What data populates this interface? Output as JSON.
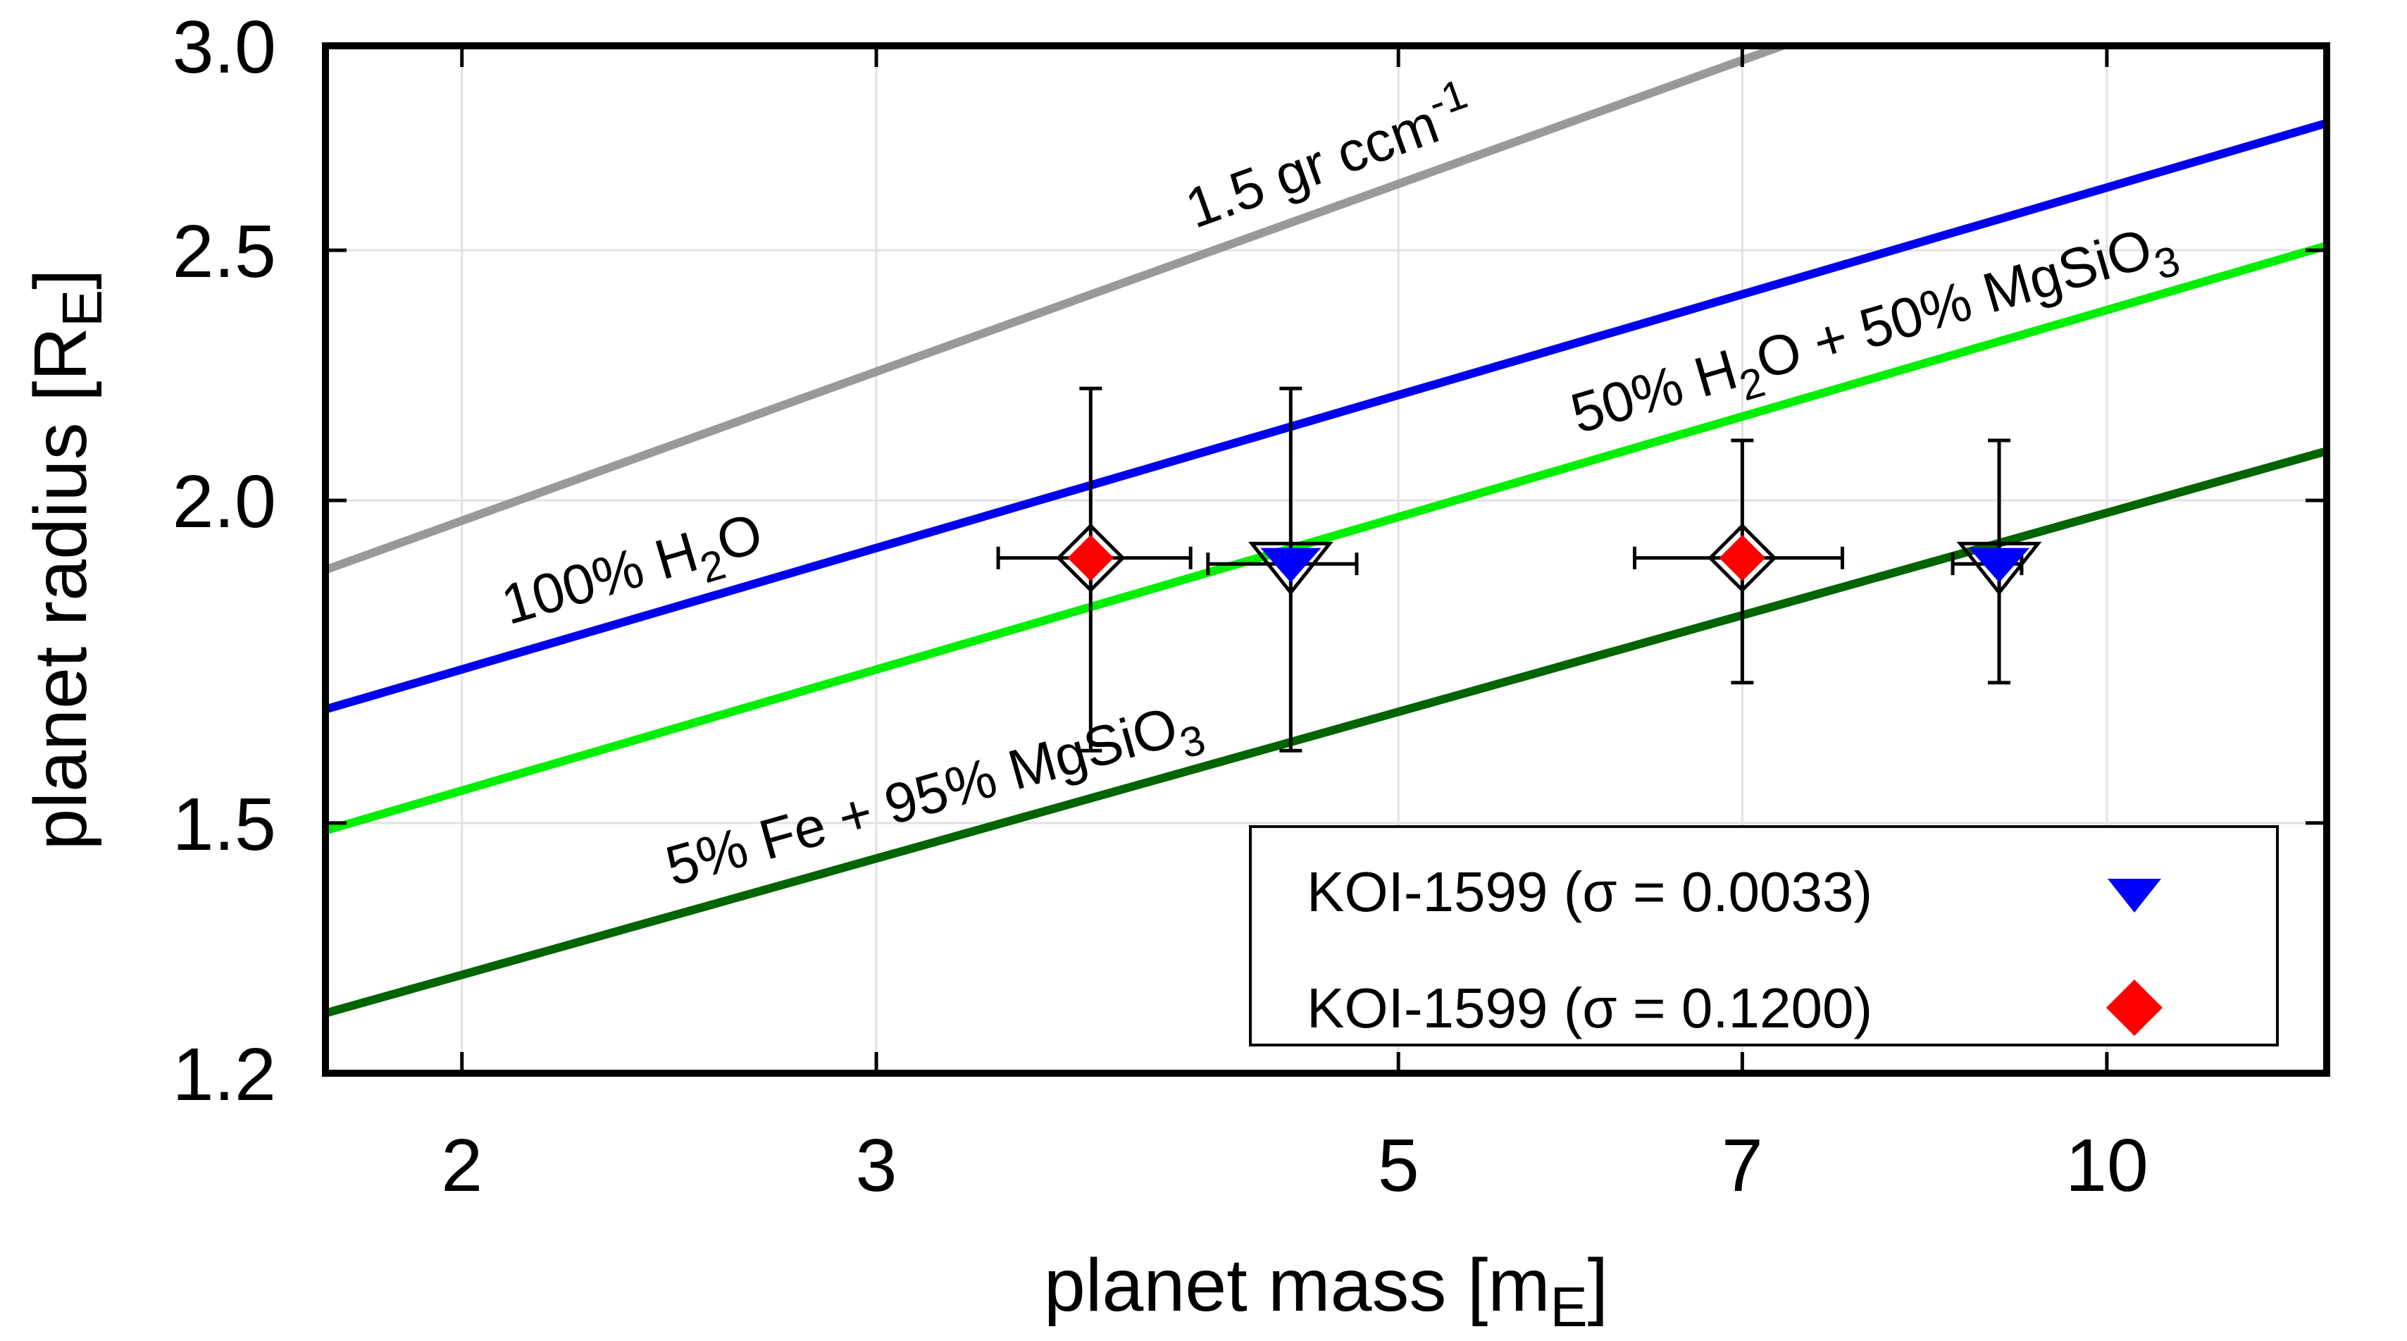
{
  "chart_data": {
    "type": "scatter",
    "x_scale": "log",
    "y_scale": "log",
    "xlabel": {
      "main": "planet mass [m",
      "sub": "E",
      "close": "]"
    },
    "ylabel": {
      "main": "planet radius [R",
      "sub": "E",
      "close": "]"
    },
    "xlim": [
      1.75,
      12.4
    ],
    "ylim": [
      1.2,
      3.0
    ],
    "x_ticks": [
      {
        "value": 2,
        "label": "2"
      },
      {
        "value": 3,
        "label": "3"
      },
      {
        "value": 5,
        "label": "5"
      },
      {
        "value": 7,
        "label": "7"
      },
      {
        "value": 10,
        "label": "10"
      }
    ],
    "y_ticks": [
      {
        "value": 1.2,
        "label": "1.2"
      },
      {
        "value": 1.5,
        "label": "1.5"
      },
      {
        "value": 2.0,
        "label": "2.0"
      },
      {
        "value": 2.5,
        "label": "2.5"
      },
      {
        "value": 3.0,
        "label": "3.0"
      }
    ],
    "grid": true,
    "curves": [
      {
        "name": "1.5 gr ccm-1",
        "color": "#999999",
        "x": [
          1.75,
          7.28
        ],
        "y": [
          1.88,
          3.0
        ]
      },
      {
        "name": "100% H2O",
        "color": "#0000ee",
        "x": [
          1.75,
          12.4
        ],
        "y": [
          1.66,
          2.8
        ]
      },
      {
        "name": "50% H2O + 50% MgSiO3",
        "color": "#00ee00",
        "x": [
          1.75,
          12.4
        ],
        "y": [
          1.49,
          2.51
        ]
      },
      {
        "name": "5% Fe + 95% MgSiO3",
        "color": "#006400",
        "x": [
          1.75,
          12.4
        ],
        "y": [
          1.266,
          2.09
        ]
      }
    ],
    "curve_labels": [
      {
        "curve": "1.5 gr ccm-1",
        "parts": [
          {
            "t": "1.5 gr ccm"
          },
          {
            "t": "-1",
            "sup": true
          }
        ]
      },
      {
        "curve": "100% H2O",
        "parts": [
          {
            "t": "100% H"
          },
          {
            "t": "2",
            "sub": true
          },
          {
            "t": "O"
          }
        ]
      },
      {
        "curve": "50% H2O + 50% MgSiO3",
        "parts": [
          {
            "t": "50% H"
          },
          {
            "t": "2",
            "sub": true
          },
          {
            "t": "O + 50% MgSiO"
          },
          {
            "t": "3",
            "sub": true
          }
        ]
      },
      {
        "curve": "5% Fe + 95% MgSiO3",
        "parts": [
          {
            "t": "5% Fe + 95% MgSiO"
          },
          {
            "t": "3",
            "sub": true
          }
        ]
      }
    ],
    "series": [
      {
        "name": "KOI-1599 (σ = 0.0033)",
        "marker": "triangle-down",
        "color": "#0000ff",
        "points": [
          {
            "x": 4.5,
            "y": 1.89,
            "xerr": [
              4.15,
              4.8
            ],
            "yerr": [
              1.6,
              2.21
            ]
          },
          {
            "x": 9.0,
            "y": 1.89,
            "xerr": [
              8.6,
              9.2
            ],
            "yerr": [
              1.7,
              2.11
            ]
          }
        ]
      },
      {
        "name": "KOI-1599 (σ = 0.1200)",
        "marker": "diamond",
        "color": "#ff0000",
        "points": [
          {
            "x": 3.7,
            "y": 1.9,
            "xerr": [
              3.38,
              4.08
            ],
            "yerr": [
              1.6,
              2.21
            ]
          },
          {
            "x": 7.0,
            "y": 1.9,
            "xerr": [
              6.3,
              7.72
            ],
            "yerr": [
              1.7,
              2.11
            ]
          }
        ]
      }
    ],
    "legend": {
      "position": "bottom-right",
      "entries": [
        {
          "label": "KOI-1599 (σ = 0.0033)",
          "marker": "triangle-down",
          "color": "#0000ff"
        },
        {
          "label": "KOI-1599 (σ = 0.1200)",
          "marker": "diamond",
          "color": "#ff0000"
        }
      ]
    }
  }
}
